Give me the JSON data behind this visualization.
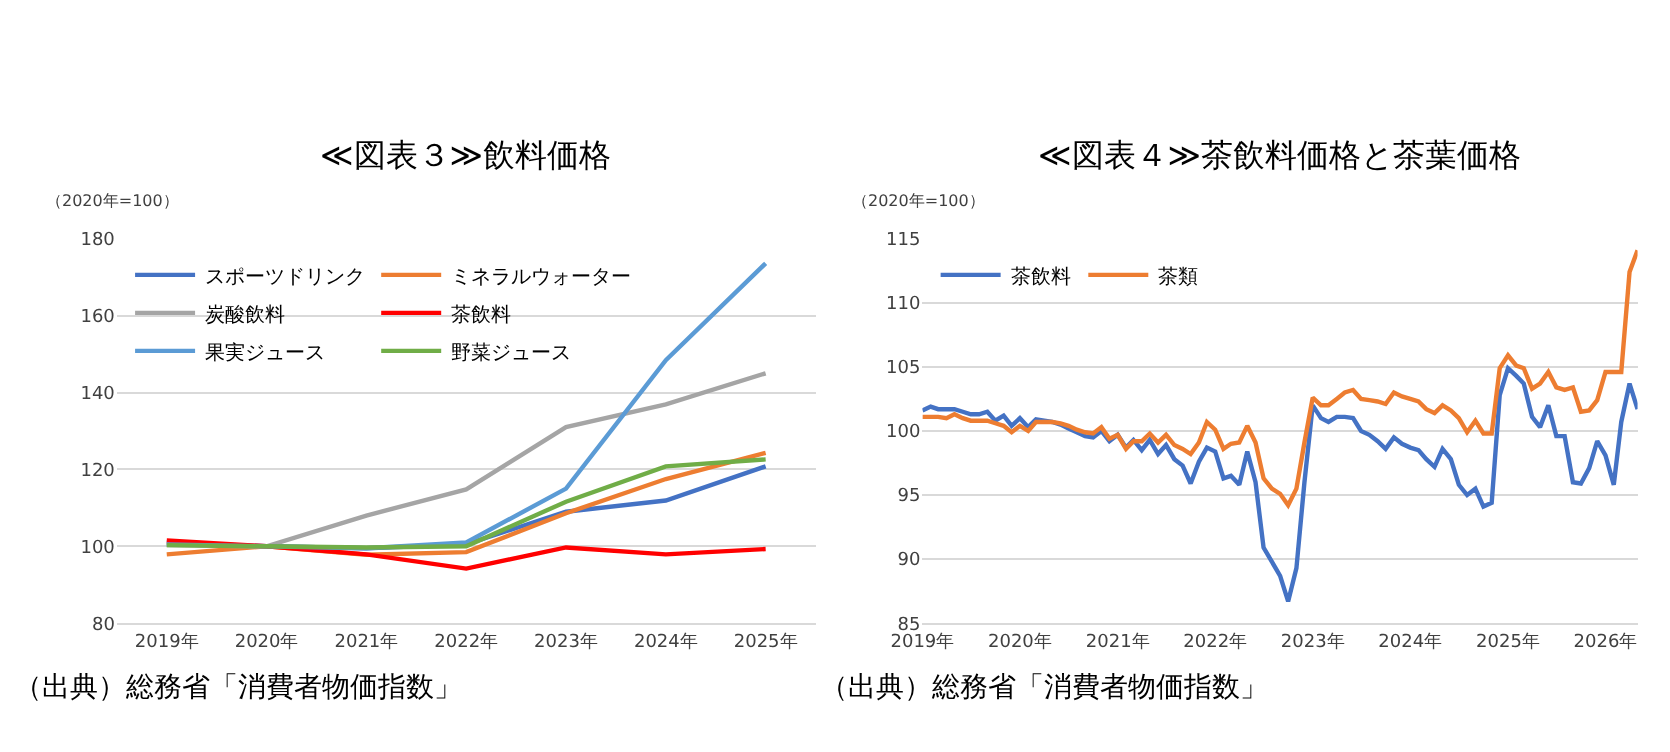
{
  "chart_data": [
    {
      "type": "line",
      "title": "≪図表３≫飲料価格",
      "ylabel": "（2020年=100）",
      "annotations": [
        "（出典）総務省「消費者物価指数」"
      ],
      "categories": [
        "2019年",
        "2020年",
        "2021年",
        "2022年",
        "2023年",
        "2024年",
        "2025年"
      ],
      "series": [
        {
          "name": "スポーツドリンク",
          "color": "#4472c4",
          "values": [
            101.0,
            100,
            99.5,
            100.5,
            109.0,
            111.9,
            120.8
          ]
        },
        {
          "name": "ミネラルウォーター",
          "color": "#ed7d31",
          "values": [
            97.9,
            100,
            97.8,
            98.5,
            108.6,
            117.5,
            124.3
          ]
        },
        {
          "name": "炭酸飲料",
          "color": "#a5a5a5",
          "values": [
            100.3,
            100,
            108.0,
            114.8,
            131.0,
            136.9,
            145.0
          ]
        },
        {
          "name": "茶飲料",
          "color": "#ff0000",
          "values": [
            101.5,
            100,
            97.9,
            94.2,
            99.7,
            97.9,
            99.3
          ]
        },
        {
          "name": "果実ジュース",
          "color": "#5b9bd5",
          "values": [
            100.5,
            100,
            99.5,
            101.0,
            115.0,
            148.4,
            173.6
          ]
        },
        {
          "name": "野菜ジュース",
          "color": "#70ad47",
          "values": [
            100.3,
            100,
            99.7,
            100.0,
            111.6,
            120.8,
            122.6
          ]
        }
      ],
      "ylim": [
        80,
        180
      ],
      "yticks": [
        80,
        100,
        120,
        140,
        160,
        180
      ],
      "grid": "y",
      "legend": "top left"
    },
    {
      "type": "line",
      "title": "≪図表４≫茶飲料価格と茶葉価格",
      "ylabel": "（2020年=100）",
      "annotations": [
        "（出典）総務省「消費者物価指数」"
      ],
      "x": [
        "2019-01",
        "2019-02",
        "2019-03",
        "2019-04",
        "2019-05",
        "2019-06",
        "2019-07",
        "2019-08",
        "2019-09",
        "2019-10",
        "2019-11",
        "2019-12",
        "2020-01",
        "2020-02",
        "2020-03",
        "2020-04",
        "2020-05",
        "2020-06",
        "2020-07",
        "2020-08",
        "2020-09",
        "2020-10",
        "2020-11",
        "2020-12",
        "2021-01",
        "2021-02",
        "2021-03",
        "2021-04",
        "2021-05",
        "2021-06",
        "2021-07",
        "2021-08",
        "2021-09",
        "2021-10",
        "2021-11",
        "2021-12",
        "2022-01",
        "2022-02",
        "2022-03",
        "2022-04",
        "2022-05",
        "2022-06",
        "2022-07",
        "2022-08",
        "2022-09",
        "2022-10",
        "2022-11",
        "2022-12",
        "2023-01",
        "2023-02",
        "2023-03",
        "2023-04",
        "2023-05",
        "2023-06",
        "2023-07",
        "2023-08",
        "2023-09",
        "2023-10",
        "2023-11",
        "2023-12",
        "2024-01",
        "2024-02",
        "2024-03",
        "2024-04",
        "2024-05",
        "2024-06",
        "2024-07",
        "2024-08",
        "2024-09",
        "2024-10",
        "2024-11",
        "2024-12",
        "2025-01",
        "2025-02",
        "2025-03",
        "2025-04",
        "2025-05",
        "2025-06",
        "2025-07",
        "2025-08",
        "2025-09",
        "2025-10",
        "2025-11",
        "2025-12",
        "2026-01",
        "2026-02",
        "2026-03",
        "2026-04",
        "2026-05"
      ],
      "series": [
        {
          "name": "茶飲料",
          "color": "#4472c4",
          "values": [
            101.6,
            101.9,
            101.7,
            101.7,
            101.7,
            101.5,
            101.3,
            101.3,
            101.5,
            100.8,
            101.2,
            100.4,
            101.0,
            100.3,
            100.9,
            100.8,
            100.7,
            100.5,
            100.2,
            99.9,
            99.6,
            99.5,
            100.0,
            99.2,
            99.7,
            98.7,
            99.3,
            98.5,
            99.3,
            98.2,
            98.9,
            97.8,
            97.3,
            95.9,
            97.6,
            98.7,
            98.4,
            96.3,
            96.5,
            95.8,
            98.4,
            96.0,
            90.9,
            89.8,
            88.7,
            86.7,
            89.3,
            96.0,
            102.0,
            101.0,
            100.7,
            101.1,
            101.1,
            101.0,
            100.0,
            99.7,
            99.2,
            98.6,
            99.5,
            99.0,
            98.7,
            98.5,
            97.8,
            97.2,
            98.6,
            97.8,
            95.8,
            95.0,
            95.5,
            94.1,
            94.4,
            102.8,
            104.9,
            104.3,
            103.7,
            101.1,
            100.3,
            102.0,
            99.6,
            99.6,
            96.0,
            95.9,
            97.1,
            99.2,
            98.1,
            95.8,
            100.7,
            103.7,
            101.7
          ]
        },
        {
          "name": "茶類",
          "color": "#ed7d31",
          "values": [
            101.1,
            101.1,
            101.1,
            101.0,
            101.3,
            101.0,
            100.8,
            100.8,
            100.8,
            100.6,
            100.4,
            99.9,
            100.4,
            100.0,
            100.7,
            100.7,
            100.7,
            100.6,
            100.4,
            100.1,
            99.9,
            99.8,
            100.3,
            99.4,
            99.7,
            98.6,
            99.2,
            99.2,
            99.8,
            99.1,
            99.7,
            98.9,
            98.6,
            98.2,
            99.1,
            100.7,
            100.1,
            98.6,
            99.0,
            99.1,
            100.4,
            99.1,
            96.3,
            95.5,
            95.1,
            94.2,
            95.5,
            99.1,
            102.6,
            102.0,
            102.0,
            102.5,
            103.0,
            103.2,
            102.5,
            102.4,
            102.3,
            102.1,
            103.0,
            102.7,
            102.5,
            102.3,
            101.7,
            101.4,
            102.0,
            101.6,
            101.0,
            99.9,
            100.8,
            99.8,
            99.8,
            104.9,
            105.9,
            105.1,
            104.9,
            103.3,
            103.7,
            104.6,
            103.4,
            103.2,
            103.4,
            101.5,
            101.6,
            102.4,
            104.6,
            104.6,
            104.6,
            112.4,
            114.1
          ]
        }
      ],
      "xlim": [
        "2019-01",
        "2026-05"
      ],
      "xticks": [
        {
          "value": "2019-01",
          "label": "2019年"
        },
        {
          "value": "2020-01",
          "label": "2020年"
        },
        {
          "value": "2021-01",
          "label": "2021年"
        },
        {
          "value": "2022-01",
          "label": "2022年"
        },
        {
          "value": "2023-01",
          "label": "2023年"
        },
        {
          "value": "2024-01",
          "label": "2024年"
        },
        {
          "value": "2025-01",
          "label": "2025年"
        },
        {
          "value": "2026-01",
          "label": "2026年"
        }
      ],
      "ylim": [
        85,
        115
      ],
      "yticks": [
        85,
        90,
        95,
        100,
        105,
        110,
        115
      ],
      "grid": "y",
      "legend": "top left"
    }
  ]
}
